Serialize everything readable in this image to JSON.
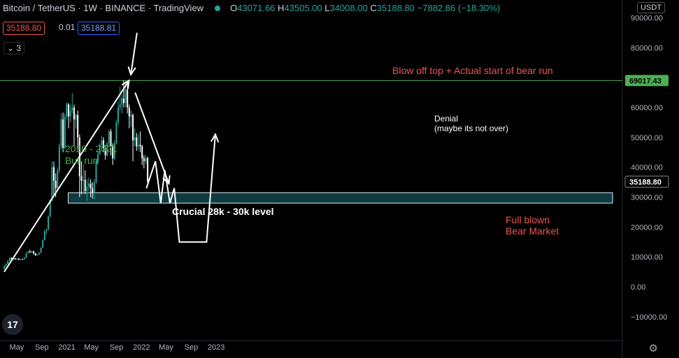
{
  "header": {
    "symbol": "Bitcoin / TetherUS · 1W · BINANCE · TradingView",
    "o_label": "O",
    "o_value": "43071.66",
    "h_label": "H",
    "h_value": "43505.00",
    "l_label": "L",
    "l_value": "34008.00",
    "c_label": "C",
    "c_value": "35188.80",
    "change": "−7882.86 (−18.30%)"
  },
  "trade": {
    "sell": "35188.80",
    "spread": "0.01",
    "buy": "35188.81"
  },
  "collapse_label": "3",
  "currency": "USDT",
  "colors": {
    "bull": "#26a69a",
    "bear": "#ffffff",
    "background": "#000000",
    "ath_line": "#4caf50",
    "zone": "#0d3b40"
  },
  "icons": {
    "collapse": "chevron-down-icon",
    "settings": "gear-icon",
    "logo": "tradingview-logo-icon",
    "status": "market-open-dot-icon"
  },
  "chart_data": {
    "type": "candlestick",
    "yaxis_ticks": [
      "90000.00",
      "80000.00",
      "70000.00",
      "60000.00",
      "50000.00",
      "40000.00",
      "30000.00",
      "20000.00",
      "10000.00",
      "0.00",
      "−10000.00"
    ],
    "ylim": [
      -13500,
      97000
    ],
    "xaxis_ticks": [
      "May",
      "Sep",
      "2021",
      "May",
      "Sep",
      "2022",
      "May",
      "Sep",
      "2023"
    ],
    "price_labels": [
      {
        "value": 69017.43,
        "text": "69017.43",
        "color": "#4caf50"
      },
      {
        "value": 35188.8,
        "text": "35188.80",
        "color": "#ffffff"
      }
    ],
    "horizontal_line": 69017.43,
    "support_zone": {
      "low": 28000,
      "high": 31500,
      "label": "Crucial 28k - 30k level"
    },
    "candles": [
      {
        "o": 6000,
        "c": 6900,
        "h": 7300,
        "l": 5800
      },
      {
        "o": 6900,
        "c": 7600,
        "h": 8000,
        "l": 6700
      },
      {
        "o": 7600,
        "c": 8700,
        "h": 9000,
        "l": 7500
      },
      {
        "o": 8700,
        "c": 9600,
        "h": 9900,
        "l": 8500
      },
      {
        "o": 9600,
        "c": 9300,
        "h": 9900,
        "l": 9000
      },
      {
        "o": 9300,
        "c": 9500,
        "h": 9800,
        "l": 9100
      },
      {
        "o": 9500,
        "c": 9200,
        "h": 9700,
        "l": 9000
      },
      {
        "o": 9200,
        "c": 9400,
        "h": 9600,
        "l": 9000
      },
      {
        "o": 9400,
        "c": 9100,
        "h": 9600,
        "l": 8900
      },
      {
        "o": 9100,
        "c": 9300,
        "h": 9500,
        "l": 9000
      },
      {
        "o": 9300,
        "c": 9200,
        "h": 9400,
        "l": 9000
      },
      {
        "o": 9200,
        "c": 9700,
        "h": 10000,
        "l": 9100
      },
      {
        "o": 9700,
        "c": 11300,
        "h": 11500,
        "l": 9600
      },
      {
        "o": 11300,
        "c": 11800,
        "h": 12000,
        "l": 11100
      },
      {
        "o": 11800,
        "c": 11500,
        "h": 12400,
        "l": 11300
      },
      {
        "o": 11500,
        "c": 11900,
        "h": 12100,
        "l": 11300
      },
      {
        "o": 11900,
        "c": 11200,
        "h": 12000,
        "l": 10800
      },
      {
        "o": 11200,
        "c": 10600,
        "h": 11300,
        "l": 10300
      },
      {
        "o": 10600,
        "c": 10800,
        "h": 11000,
        "l": 10400
      },
      {
        "o": 10800,
        "c": 11400,
        "h": 11600,
        "l": 10700
      },
      {
        "o": 11400,
        "c": 13100,
        "h": 13300,
        "l": 11300
      },
      {
        "o": 13100,
        "c": 15600,
        "h": 15900,
        "l": 13000
      },
      {
        "o": 15600,
        "c": 18700,
        "h": 19000,
        "l": 15500
      },
      {
        "o": 18700,
        "c": 19100,
        "h": 19500,
        "l": 17600
      },
      {
        "o": 19100,
        "c": 23500,
        "h": 24000,
        "l": 19000
      },
      {
        "o": 23500,
        "c": 29000,
        "h": 29300,
        "l": 23300
      },
      {
        "o": 29000,
        "c": 40000,
        "h": 42000,
        "l": 28500
      },
      {
        "o": 40000,
        "c": 35500,
        "h": 41900,
        "l": 30500
      },
      {
        "o": 35500,
        "c": 33000,
        "h": 38000,
        "l": 30000
      },
      {
        "o": 33000,
        "c": 39000,
        "h": 40000,
        "l": 32000
      },
      {
        "o": 39000,
        "c": 47000,
        "h": 48000,
        "l": 38000
      },
      {
        "o": 47000,
        "c": 56000,
        "h": 58000,
        "l": 46000
      },
      {
        "o": 56000,
        "c": 46500,
        "h": 58300,
        "l": 45000
      },
      {
        "o": 46500,
        "c": 57000,
        "h": 58000,
        "l": 46000
      },
      {
        "o": 57000,
        "c": 61000,
        "h": 61800,
        "l": 56000
      },
      {
        "o": 61000,
        "c": 57000,
        "h": 61500,
        "l": 53000
      },
      {
        "o": 57000,
        "c": 59000,
        "h": 61000,
        "l": 55000
      },
      {
        "o": 59000,
        "c": 60000,
        "h": 64800,
        "l": 58000
      },
      {
        "o": 60000,
        "c": 56000,
        "h": 61000,
        "l": 47000
      },
      {
        "o": 56000,
        "c": 57500,
        "h": 58000,
        "l": 53000
      },
      {
        "o": 57500,
        "c": 50000,
        "h": 59000,
        "l": 46000
      },
      {
        "o": 50000,
        "c": 37000,
        "h": 51000,
        "l": 30000
      },
      {
        "o": 37000,
        "c": 35500,
        "h": 42000,
        "l": 31000
      },
      {
        "o": 35500,
        "c": 35800,
        "h": 41000,
        "l": 31000
      },
      {
        "o": 35800,
        "c": 32000,
        "h": 39000,
        "l": 31000
      },
      {
        "o": 32000,
        "c": 33500,
        "h": 36000,
        "l": 28800
      },
      {
        "o": 33500,
        "c": 34500,
        "h": 36500,
        "l": 32000
      },
      {
        "o": 34500,
        "c": 33000,
        "h": 36000,
        "l": 30000
      },
      {
        "o": 33000,
        "c": 31500,
        "h": 35000,
        "l": 29500
      },
      {
        "o": 31500,
        "c": 35000,
        "h": 36000,
        "l": 29300
      },
      {
        "o": 35000,
        "c": 42000,
        "h": 42500,
        "l": 34500
      },
      {
        "o": 42000,
        "c": 44500,
        "h": 45000,
        "l": 41000
      },
      {
        "o": 44500,
        "c": 47500,
        "h": 48000,
        "l": 44000
      },
      {
        "o": 47500,
        "c": 49000,
        "h": 50500,
        "l": 46000
      },
      {
        "o": 49000,
        "c": 46500,
        "h": 50000,
        "l": 45000
      },
      {
        "o": 46500,
        "c": 44000,
        "h": 47500,
        "l": 42500
      },
      {
        "o": 44000,
        "c": 48000,
        "h": 48500,
        "l": 43500
      },
      {
        "o": 48000,
        "c": 52000,
        "h": 52500,
        "l": 47000
      },
      {
        "o": 52000,
        "c": 47000,
        "h": 52800,
        "l": 44000
      },
      {
        "o": 47000,
        "c": 43000,
        "h": 48000,
        "l": 40800
      },
      {
        "o": 43000,
        "c": 48000,
        "h": 49000,
        "l": 42500
      },
      {
        "o": 48000,
        "c": 55000,
        "h": 56000,
        "l": 47500
      },
      {
        "o": 55000,
        "c": 60000,
        "h": 62000,
        "l": 54000
      },
      {
        "o": 60000,
        "c": 61000,
        "h": 67000,
        "l": 59000
      },
      {
        "o": 61000,
        "c": 63000,
        "h": 64500,
        "l": 58000
      },
      {
        "o": 63000,
        "c": 61500,
        "h": 69000,
        "l": 60000
      },
      {
        "o": 61500,
        "c": 66000,
        "h": 69000,
        "l": 60000
      },
      {
        "o": 66000,
        "c": 60000,
        "h": 68000,
        "l": 58000
      },
      {
        "o": 60000,
        "c": 57000,
        "h": 61000,
        "l": 53000
      },
      {
        "o": 57000,
        "c": 57500,
        "h": 59000,
        "l": 53500
      },
      {
        "o": 57500,
        "c": 49000,
        "h": 58000,
        "l": 42000
      },
      {
        "o": 49000,
        "c": 50000,
        "h": 53000,
        "l": 47000
      },
      {
        "o": 50000,
        "c": 47000,
        "h": 51500,
        "l": 45500
      },
      {
        "o": 47000,
        "c": 47500,
        "h": 51000,
        "l": 45700
      },
      {
        "o": 47500,
        "c": 47000,
        "h": 52000,
        "l": 45000
      },
      {
        "o": 47000,
        "c": 43000,
        "h": 47500,
        "l": 40700
      },
      {
        "o": 43000,
        "c": 42000,
        "h": 44000,
        "l": 39600
      },
      {
        "o": 42000,
        "c": 43072,
        "h": 44000,
        "l": 41000
      },
      {
        "o": 43072,
        "c": 35189,
        "h": 43505,
        "l": 34008
      }
    ]
  },
  "annotations": {
    "bull_run": "2020 - 2021\nBull run",
    "blow_off": "Blow off top + Actual start of bear run",
    "denial_1": "Denial",
    "denial_2": "(maybe its not over)",
    "bear_market": "Full blown\nBear Market",
    "support": "Crucial 28k - 30k level"
  },
  "drawings": {
    "bull_arrow": [
      {
        "x": "2020-03",
        "y": 5000
      },
      {
        "x": "2021-11",
        "y": 69000
      }
    ],
    "blow_off_arrow": [
      {
        "x": "2021-12-10",
        "y": 85000
      },
      {
        "x": "2021-11-10",
        "y": 71000
      }
    ],
    "denial_arrow": [
      {
        "x": "2021-12-01",
        "y": 65000
      },
      {
        "x": "2022-05-15",
        "y": 34500
      }
    ],
    "projection": [
      {
        "x": "2022-01-25",
        "y": 33000
      },
      {
        "x": "2022-03-10",
        "y": 42000
      },
      {
        "x": "2022-04-05",
        "y": 28000
      },
      {
        "x": "2022-04-25",
        "y": 39000
      },
      {
        "x": "2022-05-20",
        "y": 28000
      },
      {
        "x": "2022-06-10",
        "y": 33000
      },
      {
        "x": "2022-07-05",
        "y": 15000
      },
      {
        "x": "2022-11-15",
        "y": 15000
      },
      {
        "x": "2022-12-28",
        "y": 51000
      }
    ]
  }
}
